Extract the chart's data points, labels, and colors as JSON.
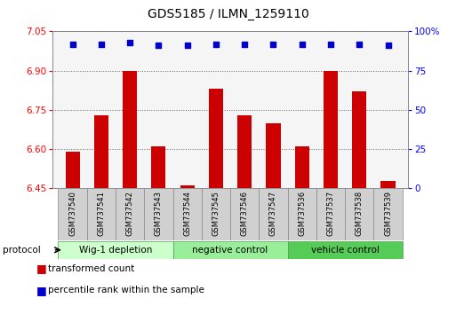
{
  "title": "GDS5185 / ILMN_1259110",
  "samples": [
    "GSM737540",
    "GSM737541",
    "GSM737542",
    "GSM737543",
    "GSM737544",
    "GSM737545",
    "GSM737546",
    "GSM737547",
    "GSM737536",
    "GSM737537",
    "GSM737538",
    "GSM737539"
  ],
  "transformed_counts": [
    6.59,
    6.73,
    6.9,
    6.61,
    6.46,
    6.83,
    6.73,
    6.7,
    6.61,
    6.9,
    6.82,
    6.48
  ],
  "percentile_ranks": [
    92,
    92,
    93,
    91,
    91,
    92,
    92,
    92,
    92,
    92,
    92,
    91
  ],
  "groups": [
    {
      "label": "Wig-1 depletion",
      "start": 0,
      "end": 4,
      "color": "#ccffcc"
    },
    {
      "label": "negative control",
      "start": 4,
      "end": 8,
      "color": "#99ee99"
    },
    {
      "label": "vehicle control",
      "start": 8,
      "end": 12,
      "color": "#55cc55"
    }
  ],
  "ylim_left": [
    6.45,
    7.05
  ],
  "ylim_right": [
    0,
    100
  ],
  "yticks_left": [
    6.45,
    6.6,
    6.75,
    6.9,
    7.05
  ],
  "yticks_right": [
    0,
    25,
    50,
    75,
    100
  ],
  "bar_color": "#cc0000",
  "dot_color": "#0000cc",
  "bar_bottom": 6.45,
  "grid_color": "#666666",
  "plot_bg_color": "#f5f5f5",
  "sample_label_bg": "#d0d0d0",
  "legend_red_label": "transformed count",
  "legend_blue_label": "percentile rank within the sample",
  "protocol_label": "protocol"
}
